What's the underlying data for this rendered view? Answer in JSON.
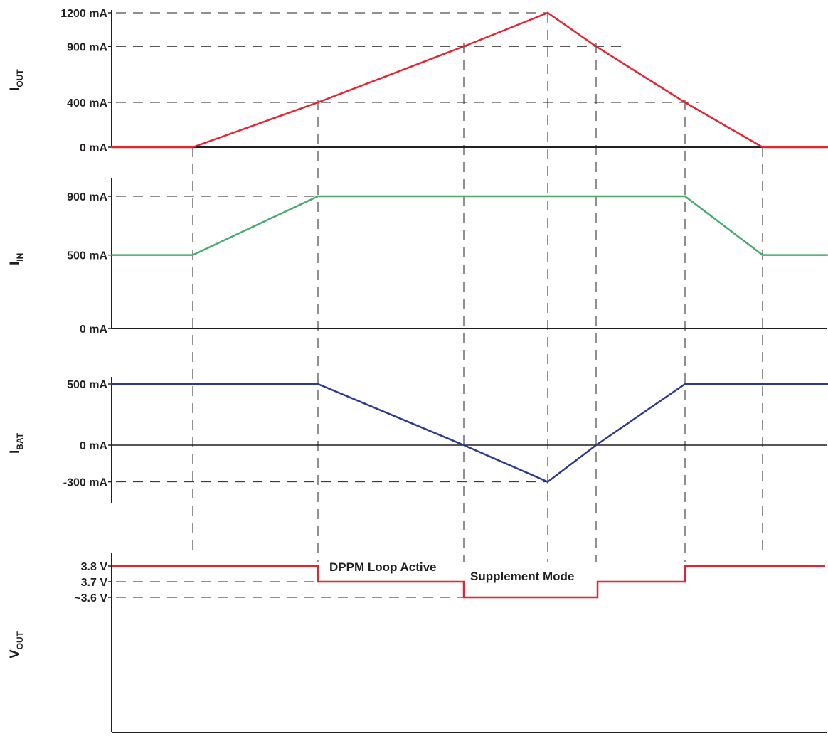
{
  "chart_data": [
    {
      "type": "line",
      "ylabel": "I",
      "ylabel_sub": "OUT",
      "unit": "mA",
      "yticks": [
        {
          "value": 1200,
          "label": "1200 mA"
        },
        {
          "value": 900,
          "label": "900 mA"
        },
        {
          "value": 400,
          "label": "400 mA"
        },
        {
          "value": 0,
          "label": "0 mA"
        }
      ],
      "x": [
        0,
        1,
        2,
        3,
        4,
        5,
        6,
        7,
        8
      ],
      "series": [
        {
          "color": "#e8222e",
          "values": [
            0,
            0,
            400,
            900,
            1200,
            900,
            400,
            0,
            0
          ]
        }
      ]
    },
    {
      "type": "line",
      "ylabel": "I",
      "ylabel_sub": "IN",
      "unit": "mA",
      "yticks": [
        {
          "value": 900,
          "label": "900 mA"
        },
        {
          "value": 500,
          "label": "500 mA"
        },
        {
          "value": 0,
          "label": "0 mA"
        }
      ],
      "x": [
        0,
        1,
        2,
        3,
        4,
        5,
        6,
        7,
        8
      ],
      "series": [
        {
          "color": "#4aa872",
          "values": [
            500,
            500,
            900,
            900,
            900,
            900,
            900,
            500,
            500
          ]
        }
      ]
    },
    {
      "type": "line",
      "ylabel": "I",
      "ylabel_sub": "BAT",
      "unit": "mA",
      "yticks": [
        {
          "value": 500,
          "label": "500 mA"
        },
        {
          "value": 0,
          "label": "0 mA"
        },
        {
          "value": -300,
          "label": "-300 mA"
        }
      ],
      "x": [
        0,
        1,
        2,
        3,
        4,
        5,
        6,
        7,
        8
      ],
      "series": [
        {
          "color": "#2b3990",
          "values": [
            500,
            500,
            500,
            0,
            -300,
            0,
            500,
            500,
            500
          ]
        }
      ]
    },
    {
      "type": "line",
      "ylabel": "V",
      "ylabel_sub": "OUT",
      "unit": "V",
      "yticks": [
        {
          "value": 3.8,
          "label": "3.8 V"
        },
        {
          "value": 3.7,
          "label": "3.7 V"
        },
        {
          "value": 3.6,
          "label": "~3.6 V"
        }
      ],
      "x": [
        0,
        1,
        2,
        3,
        4,
        5,
        6,
        7,
        8
      ],
      "series": [
        {
          "color": "#e8222e",
          "step": true,
          "values": [
            3.8,
            3.8,
            3.7,
            3.6,
            3.6,
            3.7,
            3.8,
            3.8,
            3.8
          ]
        }
      ],
      "annotations": [
        "DPPM Loop Active",
        "Supplement Mode"
      ]
    }
  ]
}
